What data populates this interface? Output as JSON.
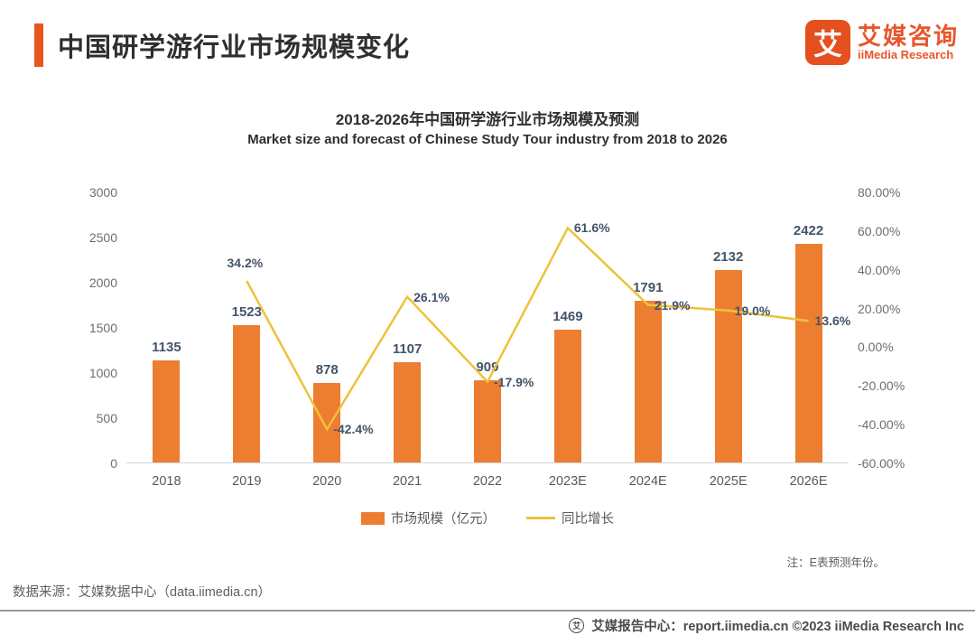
{
  "header": {
    "title": "中国研学游行业市场规模变化",
    "logo": {
      "glyph": "艾",
      "brand_zh": "艾媒咨询",
      "brand_en": "iiMedia Research"
    }
  },
  "chart_data": {
    "type": "bar",
    "title_zh": "2018-2026年中国研学游行业市场规模及预测",
    "title_en": "Market size and forecast of Chinese Study Tour industry from 2018 to 2026",
    "categories": [
      "2018",
      "2019",
      "2020",
      "2021",
      "2022",
      "2023E",
      "2024E",
      "2025E",
      "2026E"
    ],
    "series": [
      {
        "name": "市场规模（亿元）",
        "type": "bar",
        "axis": "left",
        "color": "#ED7D31",
        "values": [
          1135,
          1523,
          878,
          1107,
          909,
          1469,
          1791,
          2132,
          2422
        ]
      },
      {
        "name": "同比增长",
        "type": "line",
        "axis": "right",
        "color": "#EDC23B",
        "values": [
          null,
          34.2,
          -42.4,
          26.1,
          -17.9,
          61.6,
          21.9,
          19.0,
          13.6
        ],
        "point_labels": [
          "",
          "34.2%",
          "-42.4%",
          "26.1%",
          "-17.9%",
          "61.6%",
          "21.9%",
          "19.0%",
          "13.6%"
        ],
        "label_side": [
          "",
          "above",
          "right",
          "right",
          "right",
          "right",
          "right",
          "right",
          "right"
        ]
      }
    ],
    "left_axis": {
      "min": 0,
      "max": 3000,
      "ticks": [
        "3000",
        "2500",
        "2000",
        "1500",
        "1000",
        "500",
        "0"
      ]
    },
    "right_axis": {
      "min": -60,
      "max": 80,
      "ticks": [
        "80.00%",
        "60.00%",
        "40.00%",
        "20.00%",
        "0.00%",
        "-20.00%",
        "-40.00%",
        "-60.00%"
      ]
    },
    "grid": false,
    "legend_position": "bottom",
    "legend": [
      {
        "label": "市场规模（亿元）",
        "color": "#ED7D31",
        "shape": "rect"
      },
      {
        "label": "同比增长",
        "color": "#EDC23B",
        "shape": "line"
      }
    ],
    "note": "注：E表预测年份。"
  },
  "footer": {
    "source": "数据来源：艾媒数据中心（data.iimedia.cn）",
    "report_line": "艾媒报告中心：report.iimedia.cn  ©2023  iiMedia Research  Inc",
    "logo_glyph": "艾"
  },
  "colors": {
    "accent": "#E8551F",
    "bar": "#ED7D31",
    "line": "#EDC23B",
    "data_label": "#44546A",
    "axis_text": "#6e6e6e"
  }
}
